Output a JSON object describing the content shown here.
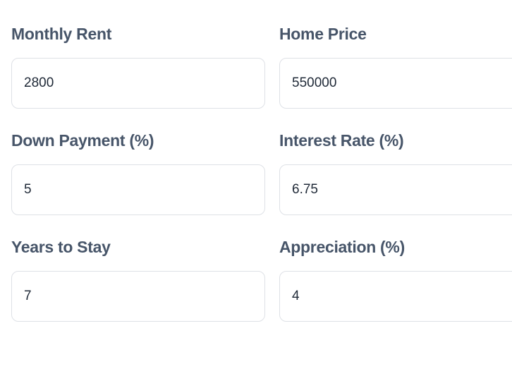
{
  "form": {
    "fields": [
      {
        "id": "monthly-rent",
        "label": "Monthly Rent",
        "value": "2800"
      },
      {
        "id": "home-price",
        "label": "Home Price",
        "value": "550000"
      },
      {
        "id": "down-payment",
        "label": "Down Payment (%)",
        "value": "5"
      },
      {
        "id": "interest-rate",
        "label": "Interest Rate (%)",
        "value": "6.75"
      },
      {
        "id": "years-to-stay",
        "label": "Years to Stay",
        "value": "7"
      },
      {
        "id": "appreciation",
        "label": "Appreciation (%)",
        "value": "4"
      }
    ]
  },
  "colors": {
    "label": "#475569",
    "value_text": "#1f2937",
    "input_border": "#dee1e6",
    "background": "#ffffff"
  }
}
